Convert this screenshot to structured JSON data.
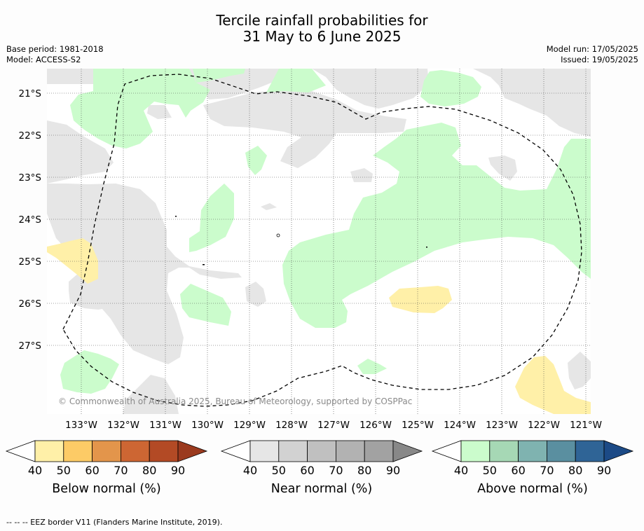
{
  "title_line1": "Tercile rainfall probabilities for",
  "title_line2": "31 May to 6 June 2025",
  "base_period": "Base period: 1981-2018",
  "model": "Model: ACCESS-S2",
  "model_run": "Model run: 17/05/2025",
  "issued": "Issued: 19/05/2025",
  "lat_labels": [
    "21°S",
    "22°S",
    "23°S",
    "24°S",
    "25°S",
    "26°S",
    "27°S"
  ],
  "lon_labels": [
    "133°W",
    "132°W",
    "131°W",
    "130°W",
    "129°W",
    "128°W",
    "127°W",
    "126°W",
    "125°W",
    "124°W",
    "123°W",
    "122°W",
    "121°W"
  ],
  "copyright": "© Commonwealth of Australia 2025, Bureau of Meteorology, supported by COSPPac",
  "legend": [
    {
      "label": "Below normal (%)",
      "ticks": [
        "40",
        "50",
        "60",
        "70",
        "80",
        "90"
      ],
      "colors": [
        "#fff0a8",
        "#fdcb66",
        "#e3954b",
        "#cd6633",
        "#b34a25"
      ],
      "extend": "#9b3a1e"
    },
    {
      "label": "Near normal (%)",
      "ticks": [
        "40",
        "50",
        "60",
        "70",
        "80",
        "90"
      ],
      "colors": [
        "#e6e6e6",
        "#d2d2d2",
        "#c0c0c0",
        "#b2b2b2",
        "#a2a2a2"
      ],
      "extend": "#888888"
    },
    {
      "label": "Above normal (%)",
      "ticks": [
        "40",
        "50",
        "60",
        "70",
        "80",
        "90"
      ],
      "colors": [
        "#cbfccc",
        "#a6d8b5",
        "#7fb3b0",
        "#5a8fa0",
        "#2f6496"
      ],
      "extend": "#1c4a86"
    }
  ],
  "colors": {
    "below": "#fff0a8",
    "near": "#e6e6e6",
    "above": "#cbfccc"
  },
  "footer": "--  --  -- EEZ border V11 (Flanders Marine Institute, 2019)."
}
